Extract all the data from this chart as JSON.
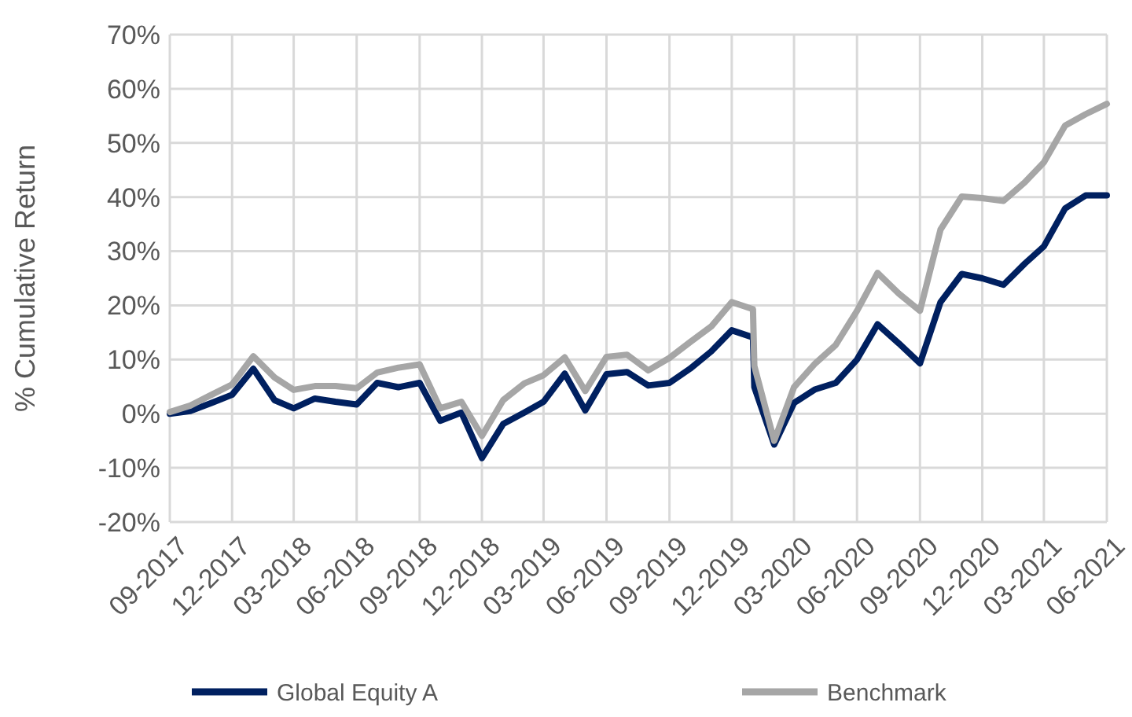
{
  "chart_data": {
    "type": "line",
    "ylabel": "% Cumulative Return",
    "x": [
      "2017-09",
      "2017-10",
      "2017-11",
      "2017-12",
      "2018-01",
      "2018-02",
      "2018-03",
      "2018-04",
      "2018-05",
      "2018-06",
      "2018-07",
      "2018-08",
      "2018-09",
      "2018-10",
      "2018-11",
      "2018-12",
      "2019-01",
      "2019-02",
      "2019-03",
      "2019-04",
      "2019-05",
      "2019-06",
      "2019-07",
      "2019-08",
      "2019-09",
      "2019-10",
      "2019-11",
      "2019-12",
      "2020-01",
      "2020-01-03",
      "2020-02",
      "2020-03",
      "2020-04",
      "2020-05",
      "2020-06",
      "2020-07",
      "2020-08",
      "2020-09",
      "2020-10",
      "2020-11",
      "2020-12",
      "2021-01",
      "2021-02",
      "2021-03",
      "2021-04",
      "2021-05",
      "2021-06"
    ],
    "series": [
      {
        "name": "Global Equity A",
        "color": "#002060",
        "values": [
          0,
          0.5,
          2,
          3.5,
          8.3,
          2.5,
          1,
          2.8,
          2.2,
          1.7,
          5.7,
          4.9,
          5.7,
          -1.3,
          0.2,
          -8.2,
          -1.9,
          0.2,
          2.2,
          7.4,
          0.6,
          7.3,
          7.7,
          5.2,
          5.7,
          8.3,
          11.5,
          15.4,
          14.1,
          4.9,
          -5.7,
          2,
          4.5,
          5.7,
          10,
          16.5,
          13,
          9.3,
          20.6,
          25.8,
          25,
          23.8,
          27.7,
          30.9,
          37.9,
          40.3,
          40.3
        ]
      },
      {
        "name": "Benchmark",
        "color": "#a6a6a6",
        "values": [
          0.3,
          1.5,
          3.5,
          5.4,
          10.6,
          6.7,
          4.4,
          5.1,
          5.1,
          4.7,
          7.6,
          8.5,
          9.1,
          1,
          2.2,
          -4.1,
          2.5,
          5.6,
          7.1,
          10.4,
          4.2,
          10.5,
          10.9,
          8,
          10.3,
          13.2,
          16.1,
          20.6,
          19.3,
          8.8,
          -5,
          4.9,
          9.3,
          12.7,
          19,
          26,
          22.2,
          19,
          34,
          40.1,
          39.8,
          39.3,
          42.7,
          46.4,
          53.2,
          55.3,
          57.2
        ]
      }
    ],
    "xlim": [
      "2017-09",
      "2021-06"
    ],
    "xticks": [
      {
        "value": "2017-09",
        "label": "09-2017"
      },
      {
        "value": "2017-12",
        "label": "12-2017"
      },
      {
        "value": "2018-03",
        "label": "03-2018"
      },
      {
        "value": "2018-06",
        "label": "06-2018"
      },
      {
        "value": "2018-09",
        "label": "09-2018"
      },
      {
        "value": "2018-12",
        "label": "12-2018"
      },
      {
        "value": "2019-03",
        "label": "03-2019"
      },
      {
        "value": "2019-06",
        "label": "06-2019"
      },
      {
        "value": "2019-09",
        "label": "09-2019"
      },
      {
        "value": "2019-12",
        "label": "12-2019"
      },
      {
        "value": "2020-03",
        "label": "03-2020"
      },
      {
        "value": "2020-06",
        "label": "06-2020"
      },
      {
        "value": "2020-09",
        "label": "09-2020"
      },
      {
        "value": "2020-12",
        "label": "12-2020"
      },
      {
        "value": "2021-03",
        "label": "03-2021"
      },
      {
        "value": "2021-06",
        "label": "06-2021"
      }
    ],
    "ylim": [
      -20,
      70
    ],
    "yticks": [
      {
        "value": -20,
        "label": "-20%"
      },
      {
        "value": -10,
        "label": "-10%"
      },
      {
        "value": 0,
        "label": "0%"
      },
      {
        "value": 10,
        "label": "10%"
      },
      {
        "value": 20,
        "label": "20%"
      },
      {
        "value": 30,
        "label": "30%"
      },
      {
        "value": 40,
        "label": "40%"
      },
      {
        "value": 50,
        "label": "50%"
      },
      {
        "value": 60,
        "label": "60%"
      },
      {
        "value": 70,
        "label": "70%"
      }
    ],
    "grid": true,
    "legend": "bottom",
    "marker": "none",
    "line_style": "solid"
  }
}
